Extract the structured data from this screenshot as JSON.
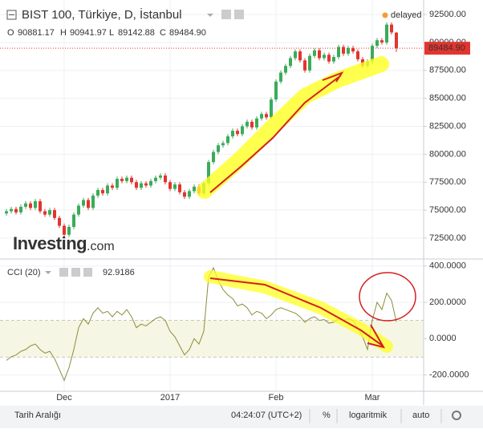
{
  "chart_data": {
    "type": "candlestick",
    "title": "BIST 100, Türkiye, D, İstanbul",
    "status": "delayed",
    "legend_keys": [
      "O",
      "H",
      "L",
      "C"
    ],
    "close_label": "89484.90",
    "categories": [
      null,
      null,
      null,
      null,
      null,
      null,
      null,
      null,
      null,
      null,
      null,
      null,
      "Dec",
      null,
      null,
      null,
      null,
      null,
      null,
      null,
      null,
      null,
      null,
      null,
      null,
      null,
      null,
      null,
      null,
      null,
      null,
      null,
      null,
      null,
      "2017",
      null,
      null,
      null,
      null,
      null,
      null,
      null,
      null,
      null,
      null,
      null,
      null,
      null,
      null,
      null,
      null,
      null,
      null,
      null,
      null,
      null,
      "Feb",
      null,
      null,
      null,
      null,
      null,
      null,
      null,
      null,
      null,
      null,
      null,
      null,
      null,
      null,
      null,
      null,
      null,
      null,
      null,
      "Mar",
      null,
      null,
      null,
      null,
      null
    ],
    "open": [
      74700,
      74900,
      75100,
      74800,
      75300,
      75600,
      75200,
      75800,
      74900,
      74600,
      75000,
      74300,
      73600,
      72800,
      73500,
      74600,
      75400,
      75900,
      75200,
      76300,
      76800,
      76500,
      77200,
      77000,
      77800,
      77600,
      77900,
      77500,
      77000,
      77400,
      77200,
      77600,
      77900,
      78100,
      77500,
      76900,
      77300,
      76600,
      76200,
      76700,
      77100,
      76500,
      77400,
      79300,
      80200,
      80800,
      81000,
      81600,
      82100,
      81800,
      82500,
      82900,
      82400,
      83200,
      83600,
      83300,
      84900,
      86500,
      87300,
      87900,
      88600,
      89200,
      88400,
      87500,
      88800,
      89300,
      88600,
      88900,
      88300,
      88700,
      89600,
      89000,
      89500,
      89200,
      88500,
      87900,
      88300,
      89700,
      90200,
      90000,
      91600,
      90881.17
    ],
    "high": [
      75100,
      75300,
      75300,
      75500,
      75800,
      75800,
      76000,
      76000,
      75100,
      75200,
      75200,
      74500,
      73800,
      73700,
      74800,
      75600,
      76100,
      76100,
      76500,
      77000,
      77000,
      77400,
      77400,
      78000,
      78000,
      78100,
      78100,
      77700,
      77600,
      77600,
      77800,
      78100,
      78300,
      78300,
      77700,
      77500,
      77500,
      76800,
      76900,
      77300,
      77300,
      77600,
      79500,
      80400,
      81000,
      81200,
      81800,
      82300,
      82300,
      82700,
      83100,
      83100,
      83400,
      83800,
      83800,
      85100,
      86700,
      87500,
      88100,
      88800,
      89400,
      89400,
      88600,
      89000,
      89500,
      89500,
      89100,
      89100,
      88900,
      89800,
      89800,
      89700,
      89700,
      89400,
      88700,
      88500,
      89900,
      90400,
      90400,
      91800,
      91800,
      90941.97
    ],
    "low": [
      74500,
      74700,
      74600,
      74600,
      75100,
      75000,
      75000,
      74700,
      74400,
      74400,
      74100,
      73400,
      72600,
      72600,
      73300,
      74400,
      75200,
      75000,
      75000,
      76100,
      76300,
      76300,
      76800,
      76800,
      77400,
      77400,
      77300,
      76800,
      76800,
      77000,
      77000,
      77400,
      77700,
      77300,
      76700,
      76700,
      76400,
      76000,
      76000,
      76500,
      76300,
      76300,
      77200,
      79100,
      80000,
      80600,
      80800,
      81400,
      81600,
      81600,
      82300,
      82200,
      82200,
      83000,
      83100,
      83100,
      84700,
      86300,
      87100,
      87700,
      88400,
      88200,
      87300,
      87300,
      88600,
      88400,
      88400,
      88100,
      88100,
      88500,
      88800,
      88800,
      89000,
      88300,
      87700,
      87700,
      88100,
      89500,
      89800,
      89800,
      90700,
      89142.88
    ],
    "close": [
      74900,
      75100,
      74800,
      75300,
      75600,
      75200,
      75800,
      74900,
      74600,
      75000,
      74300,
      73600,
      72800,
      73500,
      74600,
      75400,
      75900,
      75200,
      76300,
      76800,
      76500,
      77200,
      77000,
      77800,
      77600,
      77900,
      77500,
      77000,
      77400,
      77200,
      77600,
      77900,
      78100,
      77500,
      76900,
      77300,
      76600,
      76200,
      76700,
      77100,
      76500,
      77400,
      79300,
      80200,
      80800,
      81000,
      81600,
      82100,
      81800,
      82500,
      82900,
      82400,
      83200,
      83600,
      83300,
      84900,
      86500,
      87300,
      87900,
      88600,
      89200,
      88400,
      87500,
      88800,
      89300,
      88600,
      88900,
      88300,
      88700,
      89600,
      89000,
      89500,
      89200,
      88500,
      87900,
      88300,
      89700,
      90200,
      90000,
      91600,
      90900,
      89484.9
    ],
    "up_color": "#3bab5a",
    "down_color": "#e3342f",
    "ylim": [
      70700,
      93800
    ],
    "yticks": [
      {
        "value": 72500,
        "label": "72500.00"
      },
      {
        "value": 75000,
        "label": "75000.00"
      },
      {
        "value": 77500,
        "label": "77500.00"
      },
      {
        "value": 80000,
        "label": "80000.00"
      },
      {
        "value": 82500,
        "label": "82500.00"
      },
      {
        "value": 85000,
        "label": "85000.00"
      },
      {
        "value": 87500,
        "label": "87500.00"
      },
      {
        "value": 90000,
        "label": "90000.00"
      },
      {
        "value": 92500,
        "label": "92500.00"
      }
    ],
    "grid": true,
    "watermark": [
      "Investing",
      ".com"
    ],
    "indicator": {
      "type": "line",
      "name": "CCI (20)",
      "color": "#8c8c3c",
      "values": [
        -120,
        -100,
        -90,
        -70,
        -60,
        -40,
        -30,
        -60,
        -80,
        -70,
        -110,
        -170,
        -230,
        -160,
        -60,
        60,
        110,
        80,
        140,
        170,
        140,
        150,
        120,
        150,
        130,
        160,
        120,
        60,
        80,
        70,
        90,
        110,
        120,
        100,
        40,
        10,
        -40,
        -90,
        -60,
        0,
        -30,
        40,
        340,
        390,
        320,
        270,
        240,
        220,
        180,
        190,
        170,
        130,
        150,
        140,
        110,
        130,
        160,
        170,
        160,
        150,
        140,
        120,
        90,
        110,
        120,
        100,
        105,
        85,
        90,
        110,
        100,
        110,
        100,
        60,
        10,
        -60,
        100,
        200,
        160,
        250,
        210,
        92.9186
      ],
      "ylim": [
        -290,
        425
      ],
      "yticks": [
        {
          "value": 400,
          "label": "400.0000"
        },
        {
          "value": 200,
          "label": "200.0000"
        },
        {
          "value": 0,
          "label": "0.0000"
        },
        {
          "value": -200,
          "label": "-200.0000"
        }
      ],
      "band": [
        -100,
        100
      ]
    }
  },
  "toolbar": {
    "items": [
      "Tarih Aralığı",
      "04:24:07 (UTC+2)",
      "%",
      "logaritmik",
      "auto"
    ]
  }
}
